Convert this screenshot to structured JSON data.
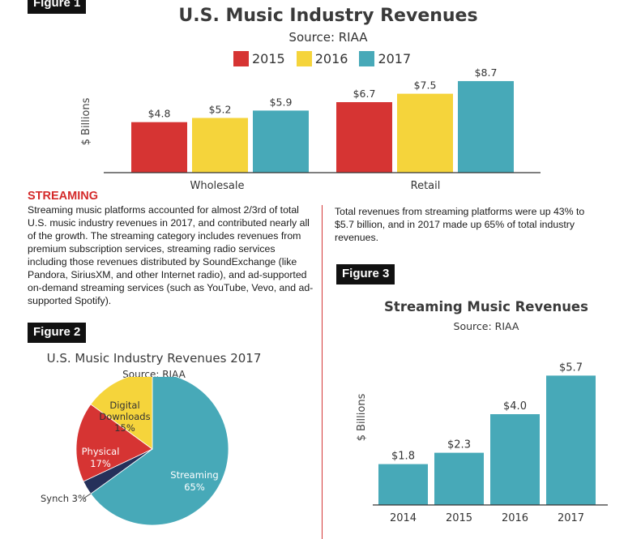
{
  "colors": {
    "y2015": "#d63433",
    "y2016": "#f5d43b",
    "y2017": "#47a9b8",
    "synch": "#25305a",
    "accent_red": "#d42a2a"
  },
  "figure1": {
    "badge": "Figure 1",
    "title": "U.S. Music Industry Revenues",
    "source": "Source: RIAA"
  },
  "figure2": {
    "badge": "Figure 2",
    "title": "U.S. Music Industry Revenues 2017",
    "source": "Source: RIAA"
  },
  "figure3": {
    "badge": "Figure 3",
    "title": "Streaming Music Revenues",
    "source": "Source: RIAA"
  },
  "streaming_section": {
    "heading": "STREAMING",
    "paragraph": "Streaming music platforms accounted for almost 2/3rd of total U.S. music industry revenues in 2017, and contributed nearly all of the growth. The streaming category includes revenues from premium subscription services, streaming radio services including those revenues distributed by SoundExchange (like Pandora, SiriusXM, and other Internet radio), and ad-supported on-demand streaming services (such as YouTube, Vevo, and ad-supported Spotify).",
    "right_paragraph": "Total revenues from streaming platforms were up 43% to $5.7 billion, and in 2017 made up 65% of total industry revenues."
  },
  "chart_data": [
    {
      "type": "bar",
      "title": "U.S. Music Industry Revenues",
      "subtitle": "Source: RIAA",
      "ylabel": "$ Billions",
      "xlabel": "",
      "categories": [
        "Wholesale",
        "Retail"
      ],
      "series": [
        {
          "name": "2015",
          "values": [
            4.8,
            6.7
          ],
          "labels": [
            "$4.8",
            "$6.7"
          ]
        },
        {
          "name": "2016",
          "values": [
            5.2,
            7.5
          ],
          "labels": [
            "$5.2",
            "$7.5"
          ]
        },
        {
          "name": "2017",
          "values": [
            5.9,
            8.7
          ],
          "labels": [
            "$5.9",
            "$8.7"
          ]
        }
      ],
      "ylim": [
        0,
        9
      ],
      "legend": "top-center",
      "grid": false
    },
    {
      "type": "pie",
      "title": "U.S. Music Industry Revenues 2017",
      "subtitle": "Source: RIAA",
      "slices": [
        {
          "name": "Streaming",
          "value": 65,
          "label": "65%"
        },
        {
          "name": "Synch",
          "value": 3,
          "label": "3%"
        },
        {
          "name": "Physical",
          "value": 17,
          "label": "17%"
        },
        {
          "name": "Digital Downloads",
          "value": 15,
          "label": "15%"
        }
      ]
    },
    {
      "type": "bar",
      "title": "Streaming Music Revenues",
      "subtitle": "Source: RIAA",
      "ylabel": "$ Billions",
      "xlabel": "",
      "categories": [
        "2014",
        "2015",
        "2016",
        "2017"
      ],
      "values": [
        1.8,
        2.3,
        4.0,
        5.7
      ],
      "labels": [
        "$1.8",
        "$2.3",
        "$4.0",
        "$5.7"
      ],
      "ylim": [
        0,
        6
      ],
      "grid": false
    }
  ]
}
